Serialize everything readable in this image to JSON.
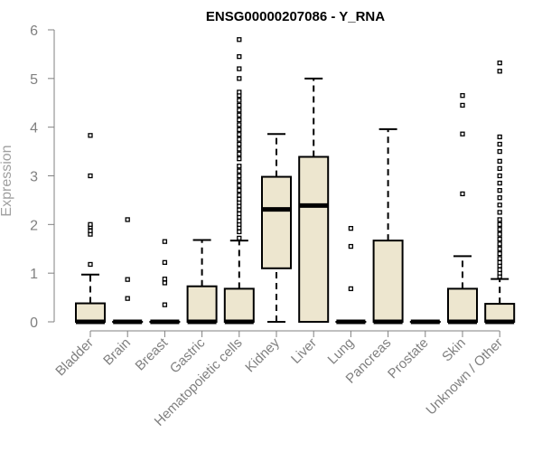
{
  "chart_data": {
    "type": "boxplot",
    "title": "ENSG00000207086 - Y_RNA",
    "xlabel": "",
    "ylabel": "Expression",
    "ylim": [
      0,
      6
    ],
    "yticks": [
      0,
      1,
      2,
      3,
      4,
      5,
      6
    ],
    "grid": false,
    "box_color": "#ede6cf",
    "categories": [
      "Bladder",
      "Brain",
      "Breast",
      "Gastric",
      "Hematopoietic cells",
      "Kidney",
      "Liver",
      "Lung",
      "Pancreas",
      "Prostate",
      "Skin",
      "Unknown / Other"
    ],
    "boxes": [
      {
        "min": 0,
        "q1": 0,
        "median": 0,
        "q3": 0.38,
        "max": 0.97,
        "outliers": [
          1.18,
          1.8,
          1.87,
          1.95,
          2.0,
          3.0,
          3.83
        ]
      },
      {
        "min": 0,
        "q1": 0,
        "median": 0,
        "q3": 0,
        "max": 0,
        "outliers": [
          0.48,
          0.87,
          2.1
        ]
      },
      {
        "min": 0,
        "q1": 0,
        "median": 0,
        "q3": 0,
        "max": 0,
        "outliers": [
          0.35,
          0.8,
          0.88,
          1.22,
          1.65
        ]
      },
      {
        "min": 0,
        "q1": 0,
        "median": 0,
        "q3": 0.73,
        "max": 1.68,
        "outliers": []
      },
      {
        "min": 0,
        "q1": 0,
        "median": 0,
        "q3": 0.68,
        "max": 1.67,
        "outliers": [
          1.72,
          1.85,
          1.93,
          2.0,
          2.07,
          2.15,
          2.22,
          2.3,
          2.38,
          2.45,
          2.52,
          2.6,
          2.7,
          2.8,
          2.9,
          3.0,
          3.1,
          3.2,
          3.35,
          3.45,
          3.55,
          3.65,
          3.75,
          3.85,
          3.95,
          4.05,
          4.15,
          4.25,
          4.35,
          4.45,
          4.55,
          4.65,
          4.72,
          5.0,
          5.2,
          5.45,
          5.8
        ]
      },
      {
        "min": 0,
        "q1": 1.1,
        "median": 2.31,
        "q3": 2.98,
        "max": 3.86,
        "outliers": []
      },
      {
        "min": 0,
        "q1": 0,
        "median": 2.39,
        "q3": 3.39,
        "max": 5.0,
        "outliers": []
      },
      {
        "min": 0,
        "q1": 0,
        "median": 0,
        "q3": 0,
        "max": 0,
        "outliers": [
          0.68,
          1.55,
          1.92
        ]
      },
      {
        "min": 0,
        "q1": 0,
        "median": 0,
        "q3": 1.67,
        "max": 3.96,
        "outliers": []
      },
      {
        "min": 0,
        "q1": 0,
        "median": 0,
        "q3": 0,
        "max": 0,
        "outliers": []
      },
      {
        "min": 0,
        "q1": 0,
        "median": 0,
        "q3": 0.68,
        "max": 1.35,
        "outliers": [
          2.63,
          3.86,
          4.45,
          4.65
        ]
      },
      {
        "min": 0,
        "q1": 0,
        "median": 0,
        "q3": 0.37,
        "max": 0.88,
        "outliers": [
          0.93,
          1.0,
          1.07,
          1.15,
          1.22,
          1.3,
          1.4,
          1.5,
          1.6,
          1.7,
          1.8,
          1.9,
          2.0,
          2.1,
          2.25,
          2.4,
          2.55,
          2.7,
          2.85,
          3.0,
          3.15,
          3.3,
          3.5,
          3.65,
          3.8,
          5.15,
          5.32
        ]
      }
    ]
  }
}
